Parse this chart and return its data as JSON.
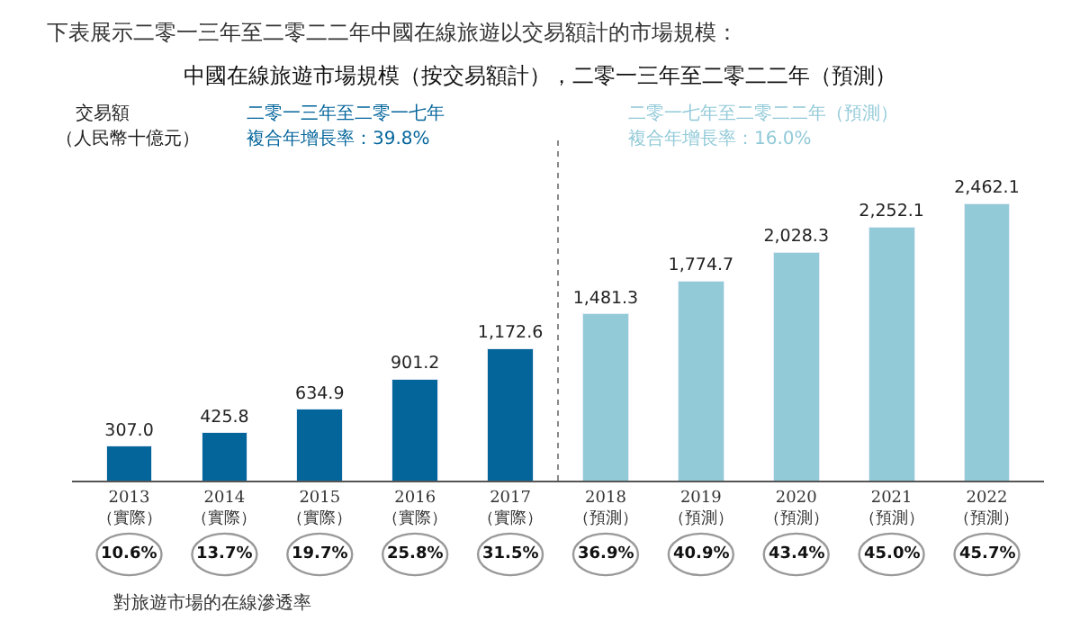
{
  "chart_data": {
    "type": "bar",
    "title": "中國在線旅遊市場規模（按交易額計），二零一三年至二零二二年（預測）",
    "ylabel": "交易額",
    "categories": [
      "2013\n（實際）",
      "2014\n（實際）",
      "2015\n（實際）",
      "2016\n（實際）",
      "2017\n（實際）",
      "2018\n（預測）",
      "2019\n（預測）",
      "2020\n（預測）",
      "2021\n（預測）",
      "2022\n（預測）"
    ],
    "series": [
      {
        "color": "#04659b",
        "values": [
          307.0,
          425.8,
          634.9,
          901.2,
          1172.6,
          null,
          null,
          null,
          null,
          null
        ],
        "value_labels": [
          "307.0",
          "425.8",
          "634.9",
          "901.2",
          "1,172.6",
          null,
          null,
          null,
          null,
          null
        ]
      },
      {
        "color": "#92cad8",
        "values": [
          null,
          null,
          null,
          null,
          null,
          1481.3,
          1774.7,
          2028.3,
          2252.1,
          2462.1
        ],
        "value_labels": [
          null,
          null,
          null,
          null,
          null,
          "1,481.3",
          "1,774.7",
          "2,028.3",
          "2,252.1",
          "2,462.1"
        ]
      }
    ],
    "stacked": true,
    "annotations": [
      "下表展示二零一三年至二零二二年中國在線旅遊以交易額計的市場規模：",
      "（人民幣十億元）",
      "二零一三年至二零一七年",
      "複合年增長率：39.8%",
      "二零一七年至二零二二年（預測）",
      "複合年增長率：16.0%",
      "10.6%",
      "13.7%",
      "19.7%",
      "25.8%",
      "31.5%",
      "36.9%",
      "40.9%",
      "43.4%",
      "45.0%",
      "45.7%",
      "對旅遊市場的在線滲透率"
    ]
  }
}
